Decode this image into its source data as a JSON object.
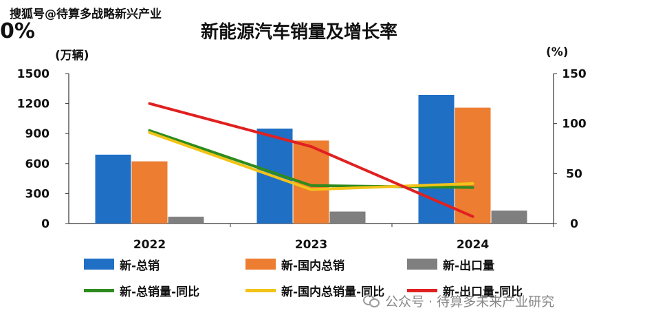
{
  "header": {
    "watermark": "搜狐号@待算多战略新兴产业",
    "corner_text": "0%"
  },
  "footer": {
    "wechat_text": "公众号 · 待算多未来产业研究"
  },
  "colors": {
    "total_sales": "#1F6FC5",
    "domestic_sales": "#ED7D31",
    "exports": "#7F7F7F",
    "total_yoy": "#2E8B1E",
    "domestic_yoy": "#F2C318",
    "export_yoy": "#E02020"
  },
  "chart_data": {
    "type": "bar",
    "title": "新能源汽车销量及增长率",
    "ylabel": "(万辆)",
    "y2label": "(%)",
    "categories": [
      "2022",
      "2023",
      "2024"
    ],
    "ylim": [
      0,
      1500
    ],
    "y2lim": [
      0,
      150
    ],
    "yticks": [
      "0",
      "300",
      "600",
      "900",
      "1200",
      "1500"
    ],
    "y2ticks": [
      "0",
      "50",
      "100",
      "150"
    ],
    "series": [
      {
        "name": "新-总销",
        "type": "bar",
        "axis": "left",
        "values": [
          689,
          950,
          1287
        ]
      },
      {
        "name": "新-国内总销",
        "type": "bar",
        "axis": "left",
        "values": [
          622,
          830,
          1159
        ]
      },
      {
        "name": "新-出口量",
        "type": "bar",
        "axis": "left",
        "values": [
          68,
          120,
          129
        ]
      },
      {
        "name": "新-总销量-同比",
        "type": "line",
        "axis": "right",
        "values": [
          93,
          38,
          36
        ]
      },
      {
        "name": "新-国内总销量-同比",
        "type": "line",
        "axis": "right",
        "values": [
          91,
          34,
          40
        ]
      },
      {
        "name": "新-出口量-同比",
        "type": "line",
        "axis": "right",
        "values": [
          120,
          77,
          7
        ]
      }
    ],
    "grid": false,
    "legend_position": "bottom"
  }
}
